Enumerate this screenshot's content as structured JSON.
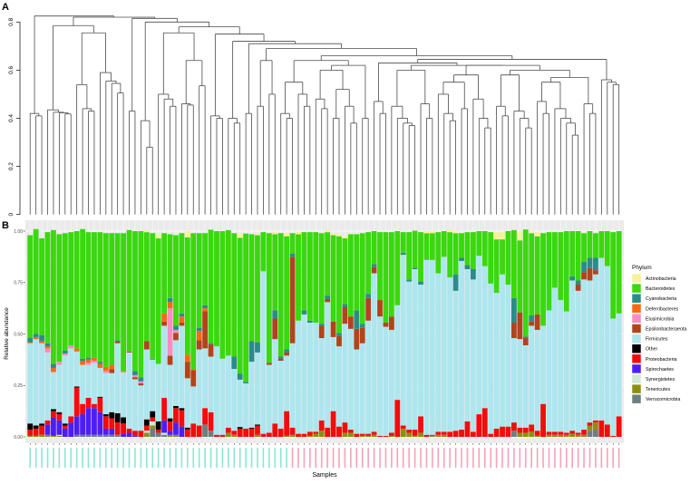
{
  "panel_labels": {
    "a": "A",
    "b": "B"
  },
  "chart_data": [
    {
      "type": "dendrogram",
      "ylim": [
        0,
        0.8
      ],
      "yticks": [
        "0",
        "0.2",
        "0.4",
        "0.6",
        "0.8"
      ],
      "ytick_values": [
        0,
        0.2,
        0.4,
        0.6,
        0.8
      ],
      "leaf_count": 102,
      "adjacent_merge_heights": [
        0.42,
        0.41,
        0.825,
        0.435,
        0.425,
        0.423,
        0.418,
        0.785,
        0.54,
        0.44,
        0.43,
        0.755,
        0.59,
        0.555,
        0.545,
        0.505,
        0.82,
        0.43,
        0.815,
        0.39,
        0.28,
        0.8,
        0.5,
        0.48,
        0.45,
        0.755,
        0.46,
        0.455,
        0.64,
        0.535,
        0.78,
        0.41,
        0.4,
        0.75,
        0.4,
        0.38,
        0.72,
        0.42,
        0.71,
        0.45,
        0.64,
        0.5,
        0.69,
        0.42,
        0.4,
        0.55,
        0.5,
        0.45,
        0.64,
        0.48,
        0.44,
        0.6,
        0.4,
        0.52,
        0.45,
        0.38,
        0.62,
        0.4,
        0.66,
        0.47,
        0.42,
        0.63,
        0.45,
        0.4,
        0.38,
        0.37,
        0.6,
        0.46,
        0.4,
        0.62,
        0.5,
        0.42,
        0.39,
        0.55,
        0.44,
        0.58,
        0.48,
        0.4,
        0.36,
        0.62,
        0.45,
        0.41,
        0.58,
        0.43,
        0.4,
        0.36,
        0.6,
        0.47,
        0.42,
        0.55,
        0.44,
        0.4,
        0.38,
        0.33,
        0.57,
        0.46,
        0.42,
        0.645,
        0.56,
        0.55,
        0.54
      ],
      "line_color": "#4a4a4a"
    },
    {
      "type": "bar",
      "stacked": true,
      "xlabel": "Samples",
      "ylabel": "Relative abundance",
      "ylim": [
        0,
        1
      ],
      "yticks": [
        "0.00",
        "0.25",
        "0.50",
        "0.75",
        "1.00"
      ],
      "ytick_values": [
        0,
        0.25,
        0.5,
        0.75,
        1
      ],
      "grid": true,
      "legend_position": "right",
      "legend_title": "Phylum",
      "series": [
        {
          "key": "act",
          "name": "Actinobacteria",
          "color": "#F7F29B"
        },
        {
          "key": "bac",
          "name": "Bacteroidetes",
          "color": "#3AD80E"
        },
        {
          "key": "cya",
          "name": "Cyanobacteria",
          "color": "#2A8C8A"
        },
        {
          "key": "def",
          "name": "Deferribacteres",
          "color": "#F76A14"
        },
        {
          "key": "elu",
          "name": "Elusimicrobia",
          "color": "#F98CC0"
        },
        {
          "key": "eps",
          "name": "Epsilonbacteraeota",
          "color": "#B1441B"
        },
        {
          "key": "firm",
          "name": "Firmicutes",
          "color": "#ADE6EE"
        },
        {
          "key": "oth",
          "name": "Other",
          "color": "#000000"
        },
        {
          "key": "pro",
          "name": "Proteobacteria",
          "color": "#F20C0C"
        },
        {
          "key": "spi",
          "name": "Spirochaetes",
          "color": "#4D1EF4"
        },
        {
          "key": "syn",
          "name": "Synergistetes",
          "color": "#CFE9D6"
        },
        {
          "key": "ten",
          "name": "Tenericutes",
          "color": "#8C8F12"
        },
        {
          "key": "ver",
          "name": "Verrucomicrobia",
          "color": "#6E7F80"
        }
      ],
      "stack_order_bottom_to_top": [
        "ver",
        "ten",
        "syn",
        "spi",
        "pro",
        "oth",
        "firm",
        "eps",
        "elu",
        "def",
        "cya",
        "bac",
        "act"
      ],
      "sample_label_groups": [
        {
          "color": "#6FE0C6",
          "count": 45
        },
        {
          "color": "#F48BA5",
          "count": 57
        }
      ],
      "samples": [
        {
          "bac": 0.5,
          "cya": 0.02,
          "def": 0.005,
          "firm": 0.39,
          "oth": 0.03,
          "pro": 0.03,
          "ten": 0.005
        },
        {
          "bac": 0.51,
          "cya": 0.015,
          "def": 0.01,
          "firm": 0.42,
          "oth": 0.015,
          "pro": 0.035,
          "ten": 0.005
        },
        {
          "bac": 0.47,
          "cya": 0.03,
          "def": 0.01,
          "firm": 0.39,
          "oth": 0.01,
          "pro": 0.045,
          "ten": 0.01
        },
        {
          "bac": 0.54,
          "cya": 0.015,
          "elu": 0.02,
          "def": 0.01,
          "firm": 0.33,
          "pro": 0.02,
          "spi": 0.05,
          "ten": 0.01
        },
        {
          "bac": 0.65,
          "cya": 0.02,
          "def": 0.02,
          "firm": 0.18,
          "oth": 0.01,
          "pro": 0.03,
          "spi": 0.09,
          "ten": 0.005
        },
        {
          "bac": 0.62,
          "elu": 0.015,
          "firm": 0.23,
          "oth": 0.01,
          "pro": 0.03,
          "spi": 0.07,
          "syn": 0.005,
          "ten": 0.005
        },
        {
          "bac": 0.57,
          "cya": 0.015,
          "elu": 0.01,
          "firm": 0.33,
          "oth": 0.01,
          "pro": 0.015,
          "spi": 0.04
        },
        {
          "bac": 0.55,
          "elu": 0.015,
          "firm": 0.33,
          "pro": 0.03,
          "spi": 0.07
        },
        {
          "bac": 0.57,
          "def": 0.015,
          "firm": 0.17,
          "oth": 0.005,
          "pro": 0.14,
          "spi": 0.09,
          "ver": 0.01
        },
        {
          "bac": 0.63,
          "cya": 0.01,
          "def": 0.02,
          "firm": 0.19,
          "pro": 0.05,
          "spi": 0.1,
          "ver": 0.01
        },
        {
          "bac": 0.61,
          "cya": 0.01,
          "def": 0.015,
          "elu": 0.01,
          "firm": 0.16,
          "pro": 0.05,
          "spi": 0.13,
          "ver": 0.01
        },
        {
          "bac": 0.61,
          "def": 0.015,
          "elu": 0.01,
          "firm": 0.2,
          "pro": 0.02,
          "spi": 0.13,
          "ver": 0.01
        },
        {
          "bac": 0.63,
          "cya": 0.01,
          "def": 0.02,
          "firm": 0.14,
          "oth": 0.005,
          "pro": 0.07,
          "spi": 0.11,
          "ver": 0.01
        },
        {
          "bac": 0.65,
          "def": 0.02,
          "elu": 0.01,
          "firm": 0.2,
          "oth": 0.01,
          "pro": 0.06,
          "spi": 0.03,
          "ver": 0.01
        },
        {
          "bac": 0.64,
          "def": 0.02,
          "eps": 0.02,
          "firm": 0.19,
          "oth": 0.03,
          "pro": 0.05,
          "spi": 0.03,
          "ver": 0.01
        },
        {
          "bac": 0.52,
          "cya": 0.005,
          "eps": 0.01,
          "firm": 0.34,
          "oth": 0.045,
          "pro": 0.06,
          "ver": 0.01
        },
        {
          "bac": 0.67,
          "def": 0.005,
          "firm": 0.22,
          "oth": 0.03,
          "pro": 0.05,
          "spi": 0.015
        },
        {
          "bac": 0.59,
          "eps": 0.005,
          "firm": 0.37,
          "pro": 0.02,
          "spi": 0.02
        },
        {
          "bac": 0.68,
          "cya": 0.02,
          "elu": 0.01,
          "eps": 0.01,
          "firm": 0.25,
          "pro": 0.025,
          "spi": 0.005
        },
        {
          "bac": 0.71,
          "cya": 0.02,
          "elu": 0.01,
          "eps": 0.01,
          "firm": 0.22,
          "pro": 0.03
        },
        {
          "act": 0.01,
          "bac": 0.53,
          "eps": 0.04,
          "firm": 0.34,
          "oth": 0.03,
          "pro": 0.025,
          "syn": 0.01,
          "ten": 0.02
        },
        {
          "bac": 0.61,
          "cya": 0.005,
          "firm": 0.25,
          "oth": 0.03,
          "pro": 0.02,
          "syn": 0.02,
          "ten": 0.015,
          "ver": 0.04
        },
        {
          "act": 0.02,
          "bac": 0.61,
          "firm": 0.28,
          "oth": 0.04,
          "pro": 0.015,
          "ver": 0.02
        },
        {
          "bac": 0.39,
          "def": 0.04,
          "eps": 0.02,
          "firm": 0.35,
          "pro": 0.11,
          "spi": 0.06,
          "syn": 0.01,
          "ver": 0.01
        },
        {
          "bac": 0.31,
          "cya": 0.02,
          "def": 0.03,
          "elu": 0.23,
          "eps": 0.045,
          "firm": 0.26,
          "oth": 0.015,
          "pro": 0.045,
          "spi": 0.02,
          "ten": 0.01
        },
        {
          "bac": 0.44,
          "cya": 0.02,
          "elu": 0.015,
          "eps": 0.035,
          "firm": 0.32,
          "oth": 0.01,
          "pro": 0.07,
          "spi": 0.06,
          "ten": 0.01
        },
        {
          "bac": 0.39,
          "cya": 0.015,
          "def": 0.03,
          "eps": 0.015,
          "firm": 0.4,
          "oth": 0.01,
          "pro": 0.08,
          "spi": 0.05
        },
        {
          "act": 0.03,
          "bac": 0.57,
          "def": 0.035,
          "eps": 0.08,
          "firm": 0.24,
          "oth": 0.008,
          "pro": 0.037
        },
        {
          "bac": 0.66,
          "def": 0.005,
          "eps": 0.08,
          "firm": 0.18,
          "pro": 0.065
        },
        {
          "bac": 0.46,
          "cya": 0.015,
          "def": 0.045,
          "eps": 0.045,
          "firm": 0.37,
          "pro": 0.055
        },
        {
          "bac": 0.35,
          "cya": 0.015,
          "def": 0.015,
          "eps": 0.18,
          "firm": 0.29,
          "pro": 0.08,
          "ver": 0.06
        },
        {
          "bac": 0.55,
          "cya": 0.007,
          "eps": 0.06,
          "firm": 0.27,
          "pro": 0.09,
          "ver": 0.03
        },
        {
          "bac": 0.56,
          "firm": 0.43,
          "pro": 0.01
        },
        {
          "bac": 0.62,
          "firm": 0.37,
          "pro": 0.01
        },
        {
          "bac": 0.61,
          "firm": 0.35,
          "pro": 0.025,
          "ten": 0.02
        },
        {
          "bac": 0.6,
          "cya": 0.06,
          "firm": 0.3,
          "pro": 0.02,
          "ten": 0.01
        },
        {
          "act": 0.02,
          "bac": 0.66,
          "cya": 0.03,
          "firm": 0.23,
          "oth": 0.008,
          "pro": 0.04
        },
        {
          "bac": 0.72,
          "cya": 0.008,
          "firm": 0.22,
          "pro": 0.04
        },
        {
          "bac": 0.52,
          "cya": 0.1,
          "firm": 0.32,
          "oth": 0.005,
          "pro": 0.04
        },
        {
          "act": 0.01,
          "bac": 0.52,
          "cya": 0.05,
          "firm": 0.35,
          "oth": 0.005,
          "pro": 0.045,
          "ten": 0.01
        },
        {
          "bac": 0.19,
          "firm": 0.79,
          "pro": 0.015
        },
        {
          "bac": 0.63,
          "eps": 0.01,
          "firm": 0.33,
          "pro": 0.02
        },
        {
          "act": 0.01,
          "bac": 0.37,
          "cya": 0.04,
          "eps": 0.1,
          "firm": 0.41,
          "pro": 0.065
        },
        {
          "bac": 0.6,
          "cya": 0.01,
          "eps": 0.01,
          "firm": 0.33,
          "pro": 0.04
        },
        {
          "act": 0.015,
          "bac": 0.55,
          "cya": 0.015,
          "eps": 0.015,
          "firm": 0.27,
          "pro": 0.12,
          "ten": 0.005
        },
        {
          "bac": 0.1,
          "cya": 0.015,
          "eps": 0.42,
          "firm": 0.41,
          "pro": 0.035,
          "ten": 0.01
        },
        {
          "act": 0.01,
          "bac": 0.42,
          "firm": 0.55,
          "pro": 0.015
        },
        {
          "bac": 0.38,
          "cya": 0.02,
          "firm": 0.58,
          "pro": 0.015
        },
        {
          "bac": 0.43,
          "cya": 0.01,
          "firm": 0.53,
          "pro": 0.02,
          "ten": 0.005
        },
        {
          "bac": 0.44,
          "firm": 0.53,
          "pro": 0.01,
          "ten": 0.015
        },
        {
          "bac": 0.44,
          "cya": 0.01,
          "eps": 0.06,
          "firm": 0.4,
          "pro": 0.05,
          "ten": 0.03
        },
        {
          "act": 0.01,
          "bac": 0.31,
          "cya": 0.015,
          "eps": 0.015,
          "firm": 0.61,
          "pro": 0.045
        },
        {
          "act": 0.01,
          "bac": 0.42,
          "eps": 0.075,
          "firm": 0.36,
          "pro": 0.125
        },
        {
          "act": 0.01,
          "bac": 0.47,
          "cya": 0.015,
          "eps": 0.05,
          "firm": 0.39,
          "pro": 0.05
        },
        {
          "act": 0.01,
          "bac": 0.32,
          "cya": 0.015,
          "eps": 0.08,
          "firm": 0.48,
          "pro": 0.05,
          "ten": 0.02
        },
        {
          "bac": 0.4,
          "eps": 0.06,
          "firm": 0.49,
          "pro": 0.015,
          "ten": 0.02
        },
        {
          "bac": 0.37,
          "cya": 0.09,
          "eps": 0.1,
          "firm": 0.41,
          "pro": 0.015
        },
        {
          "bac": 0.44,
          "cya": 0.02,
          "eps": 0.075,
          "firm": 0.44,
          "pro": 0.01,
          "ten": 0.005
        },
        {
          "bac": 0.3,
          "cya": 0.02,
          "eps": 0.11,
          "firm": 0.55,
          "pro": 0.01,
          "ten": 0.005
        },
        {
          "bac": 0.16,
          "cya": 0.015,
          "eps": 0.03,
          "firm": 0.77,
          "pro": 0.015,
          "ten": 0.01
        },
        {
          "bac": 0.33,
          "eps": 0.08,
          "firm": 0.58,
          "pro": 0.005
        },
        {
          "bac": 0.44,
          "eps": 0.02,
          "firm": 0.53,
          "pro": 0.005
        },
        {
          "bac": 0.41,
          "eps": 0.065,
          "firm": 0.5,
          "pro": 0.015,
          "ten": 0.005
        },
        {
          "bac": 0.36,
          "firm": 0.46,
          "pro": 0.18
        },
        {
          "bac": 0.1,
          "cya": 0.01,
          "firm": 0.83,
          "pro": 0.015,
          "ten": 0.04
        },
        {
          "bac": 0.23,
          "cya": 0.01,
          "firm": 0.72,
          "pro": 0.015,
          "ten": 0.02
        },
        {
          "bac": 0.18,
          "cya": 0.007,
          "firm": 0.78,
          "pro": 0.03,
          "ten": 0.005
        },
        {
          "bac": 0.24,
          "cya": 0.015,
          "firm": 0.64,
          "pro": 0.08,
          "ten": 0.02
        },
        {
          "act": 0.01,
          "bac": 0.13,
          "firm": 0.85,
          "pro": 0.01
        },
        {
          "act": 0.01,
          "bac": 0.13,
          "firm": 0.85,
          "pro": 0.005,
          "ten": 0.005
        },
        {
          "bac": 0.2,
          "firm": 0.77,
          "pro": 0.015,
          "ten": 0.01
        },
        {
          "bac": 0.125,
          "firm": 0.85,
          "pro": 0.015,
          "ten": 0.01
        },
        {
          "act": 0.01,
          "bac": 0.22,
          "firm": 0.75,
          "pro": 0.025
        },
        {
          "act": 0.01,
          "bac": 0.2,
          "cya": 0.08,
          "firm": 0.68,
          "pro": 0.03
        },
        {
          "bac": 0.12,
          "cya": 0.015,
          "firm": 0.82,
          "pro": 0.035
        },
        {
          "bac": 0.16,
          "cya": 0.02,
          "firm": 0.74,
          "pro": 0.075
        },
        {
          "bac": 0.18,
          "cya": 0.05,
          "firm": 0.74,
          "pro": 0.025
        },
        {
          "bac": 0.12,
          "firm": 0.77,
          "pro": 0.11
        },
        {
          "bac": 0.17,
          "firm": 0.69,
          "pro": 0.14
        },
        {
          "bac": 0.25,
          "firm": 0.73,
          "pro": 0.015
        },
        {
          "act": 0.035,
          "bac": 0.26,
          "firm": 0.66,
          "pro": 0.04
        },
        {
          "act": 0.035,
          "bac": 0.17,
          "firm": 0.74,
          "pro": 0.05
        },
        {
          "bac": 0.26,
          "firm": 0.69,
          "pro": 0.05
        },
        {
          "bac": 0.33,
          "cya": 0.12,
          "eps": 0.075,
          "firm": 0.41,
          "pro": 0.04,
          "ver": 0.03
        },
        {
          "act": 0.045,
          "bac": 0.35,
          "eps": 0.13,
          "firm": 0.43,
          "pro": 0.025,
          "ten": 0.02
        },
        {
          "bac": 0.52,
          "cya": 0.008,
          "eps": 0.035,
          "firm": 0.4,
          "pro": 0.025,
          "ten": 0.02
        },
        {
          "act": 0.01,
          "bac": 0.4,
          "cya": 0.03,
          "eps": 0.02,
          "firm": 0.48,
          "pro": 0.035,
          "ten": 0.025
        },
        {
          "act": 0.02,
          "bac": 0.38,
          "eps": 0.075,
          "firm": 0.49,
          "pro": 0.025,
          "ten": 0.005
        },
        {
          "bac": 0.45,
          "firm": 0.38,
          "pro": 0.16
        },
        {
          "bac": 0.38,
          "firm": 0.59,
          "pro": 0.015,
          "ten": 0.01
        },
        {
          "bac": 0.27,
          "firm": 0.7,
          "pro": 0.015,
          "ten": 0.01
        },
        {
          "bac": 0.33,
          "firm": 0.64,
          "pro": 0.015,
          "ten": 0.01
        },
        {
          "bac": 0.39,
          "firm": 0.59,
          "pro": 0.01,
          "ten": 0.01
        },
        {
          "bac": 0.22,
          "cya": 0.02,
          "firm": 0.73,
          "pro": 0.015,
          "ten": 0.015
        },
        {
          "bac": 0.24,
          "cya": 0.02,
          "eps": 0.03,
          "firm": 0.69,
          "pro": 0.01,
          "ten": 0.01
        },
        {
          "bac": 0.14,
          "cya": 0.05,
          "eps": 0.035,
          "firm": 0.73,
          "pro": 0.025,
          "ten": 0.01
        },
        {
          "bac": 0.13,
          "cya": 0.05,
          "eps": 0.06,
          "firm": 0.69,
          "pro": 0.015,
          "ten": 0.025,
          "ver": 0.03
        },
        {
          "bac": 0.12,
          "cya": 0.06,
          "eps": 0.02,
          "firm": 0.71,
          "pro": 0.01,
          "ten": 0.035,
          "ver": 0.035
        },
        {
          "bac": 0.13,
          "firm": 0.79,
          "pro": 0.08
        },
        {
          "bac": 0.17,
          "firm": 0.77,
          "pro": 0.06
        },
        {
          "bac": 0.42,
          "firm": 0.57,
          "pro": 0.005
        },
        {
          "bac": 0.4,
          "firm": 0.5,
          "pro": 0.1
        }
      ]
    }
  ]
}
